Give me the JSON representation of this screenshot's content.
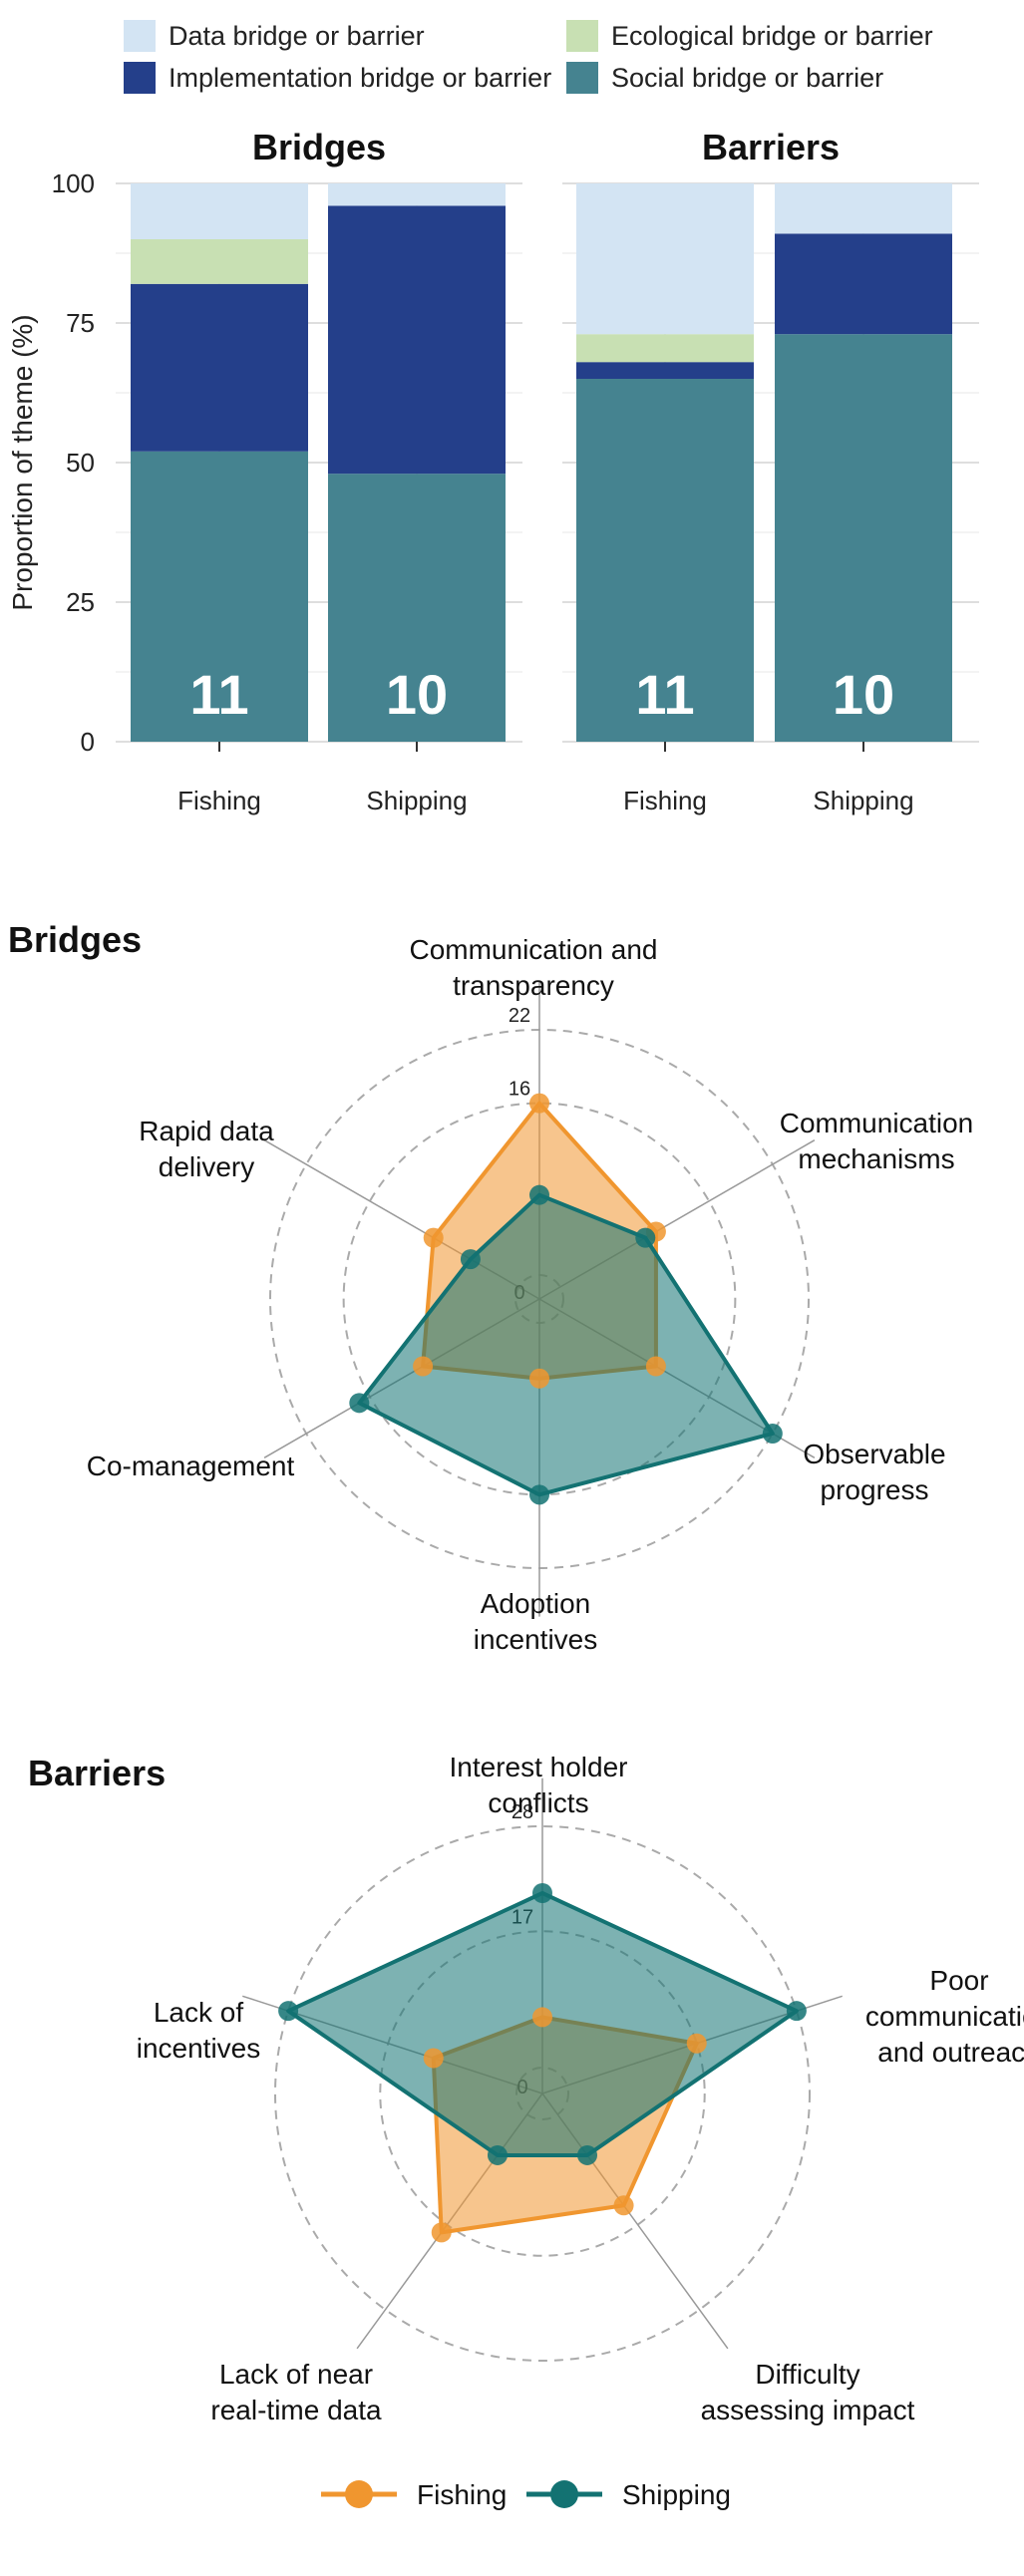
{
  "legend_top": [
    {
      "label": "Data bridge or barrier",
      "color": "#d3e4f3"
    },
    {
      "label": "Ecological bridge or barrier",
      "color": "#c8e0b3"
    },
    {
      "label": "Implementation bridge or barrier",
      "color": "#243f8a"
    },
    {
      "label": "Social bridge or barrier",
      "color": "#458390"
    }
  ],
  "legend_bottom": [
    {
      "label": "Fishing",
      "color": "#f0962f"
    },
    {
      "label": "Shipping",
      "color": "#137272"
    }
  ],
  "chart_data": [
    {
      "type": "bar",
      "stacked": true,
      "ylabel": "Proportion of theme (%)",
      "ylim": [
        0,
        100
      ],
      "yticks": [
        "0",
        "25",
        "50",
        "75",
        "100"
      ],
      "panels": [
        {
          "title": "Bridges",
          "categories": [
            "Fishing",
            "Shipping"
          ],
          "counts": [
            "11",
            "10"
          ],
          "series": [
            {
              "name": "Social bridge or barrier",
              "values": [
                52,
                48
              ]
            },
            {
              "name": "Implementation bridge or barrier",
              "values": [
                30,
                48
              ]
            },
            {
              "name": "Ecological bridge or barrier",
              "values": [
                8,
                0
              ]
            },
            {
              "name": "Data bridge or barrier",
              "values": [
                10,
                4
              ]
            }
          ]
        },
        {
          "title": "Barriers",
          "categories": [
            "Fishing",
            "Shipping"
          ],
          "counts": [
            "11",
            "10"
          ],
          "series": [
            {
              "name": "Social bridge or barrier",
              "values": [
                65,
                73
              ]
            },
            {
              "name": "Implementation bridge or barrier",
              "values": [
                3,
                18
              ]
            },
            {
              "name": "Ecological bridge or barrier",
              "values": [
                5,
                0
              ]
            },
            {
              "name": "Data bridge or barrier",
              "values": [
                27,
                9
              ]
            }
          ]
        }
      ]
    },
    {
      "type": "radar",
      "title": "Bridges",
      "rmax": 22,
      "ring_labels": [
        "0",
        "16",
        "22"
      ],
      "ring_values": [
        0,
        16,
        22
      ],
      "axes": [
        [
          "Communication and",
          "transparency"
        ],
        [
          "Communication",
          "mechanisms"
        ],
        [
          "Observable",
          "progress"
        ],
        [
          "Adoption",
          "incentives"
        ],
        [
          "Co-management"
        ],
        [
          "Rapid data",
          "delivery"
        ]
      ],
      "series": [
        {
          "name": "Fishing",
          "values": [
            16,
            11,
            11,
            6.5,
            11,
            10
          ]
        },
        {
          "name": "Shipping",
          "values": [
            8.5,
            10,
            22,
            16,
            17,
            6.5
          ]
        }
      ]
    },
    {
      "type": "radar",
      "title": "Barriers",
      "rmax": 28,
      "ring_labels": [
        "0",
        "17",
        "28"
      ],
      "ring_values": [
        0,
        17,
        28
      ],
      "axes": [
        [
          "Interest holder",
          "conflicts"
        ],
        [
          "Poor",
          "communication",
          "and outreach"
        ],
        [
          "Difficulty",
          "assessing impact"
        ],
        [
          "Lack of near",
          "real-time data"
        ],
        [
          "Lack of",
          "incentives"
        ]
      ],
      "series": [
        {
          "name": "Fishing",
          "values": [
            8,
            17,
            14.5,
            18,
            12
          ]
        },
        {
          "name": "Shipping",
          "values": [
            21,
            28,
            8,
            8,
            28
          ]
        }
      ]
    }
  ]
}
